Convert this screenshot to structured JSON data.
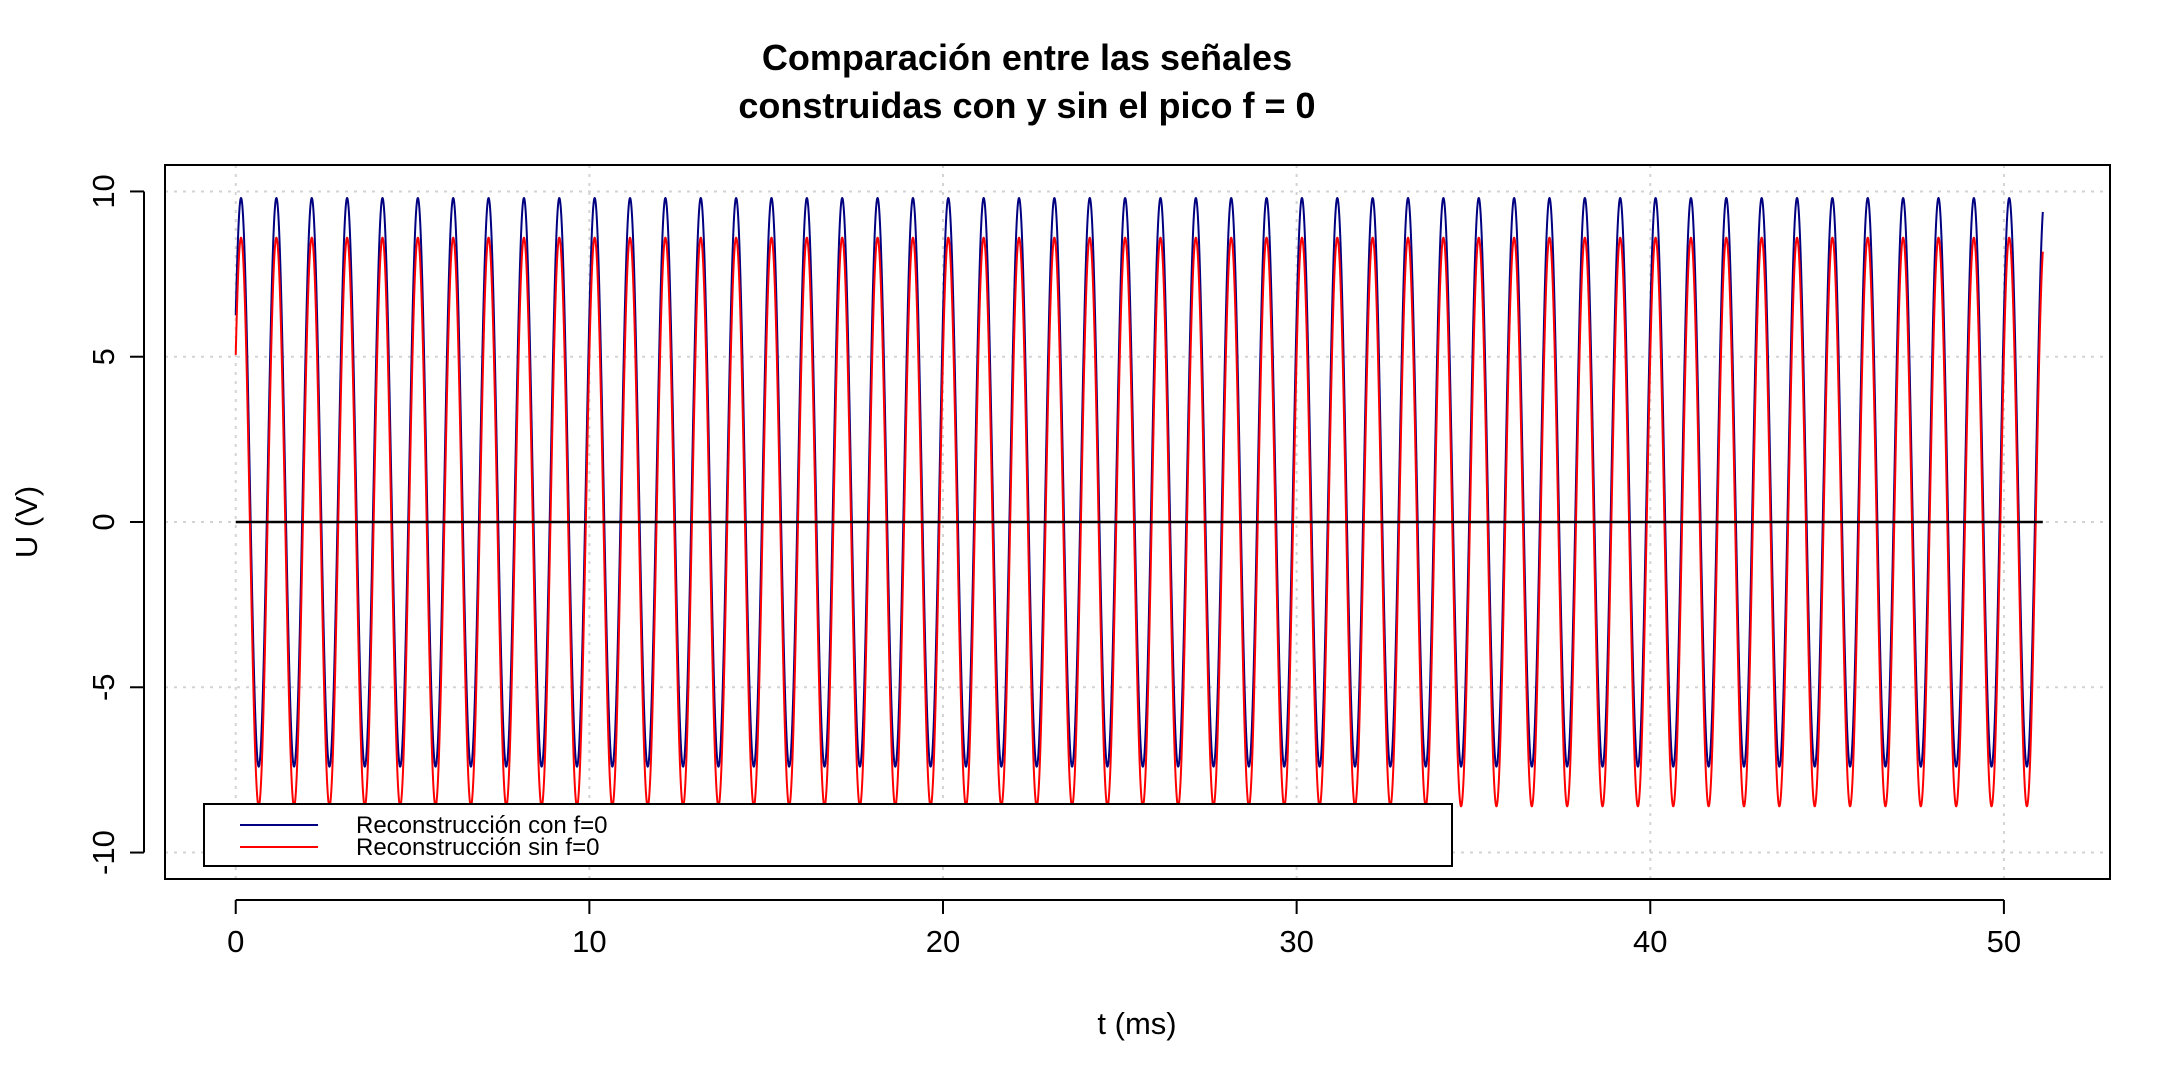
{
  "chart_data": {
    "type": "line",
    "title_line1": "Comparación entre las señales",
    "title_line2": "construidas con y sin el pico f = 0",
    "xlabel": "t (ms)",
    "ylabel": "U (V)",
    "xlim": [
      -2,
      53
    ],
    "ylim": [
      -10.8,
      10.8
    ],
    "x_ticks": [
      "0",
      "10",
      "20",
      "30",
      "40",
      "50"
    ],
    "x_tick_values": [
      0,
      10,
      20,
      30,
      40,
      50
    ],
    "y_ticks": [
      "-10",
      "-5",
      "0",
      "5",
      "10"
    ],
    "y_tick_values": [
      -10,
      -5,
      0,
      5,
      10
    ],
    "grid": true,
    "legend_position": "bottom-left",
    "signal": {
      "t_start": 0,
      "t_end": 51.1,
      "period": 1.0,
      "phase_start": 0.1,
      "amplitude": 8.6,
      "dc_offset": 1.2
    },
    "zero_line": {
      "y": 0,
      "x_start": 0,
      "x_end": 51.1,
      "color": "#000000"
    },
    "series": [
      {
        "name": "Reconstrucción con f=0",
        "color": "#000080",
        "formula": "1.2 + 8.6*sin(2*pi*(t + 0.1))",
        "min": -7.4,
        "max": 9.8
      },
      {
        "name": "Reconstrucción sin f=0",
        "color": "#ff0000",
        "formula": "8.6*sin(2*pi*(t + 0.1))",
        "min": -8.6,
        "max": 8.6
      }
    ]
  }
}
